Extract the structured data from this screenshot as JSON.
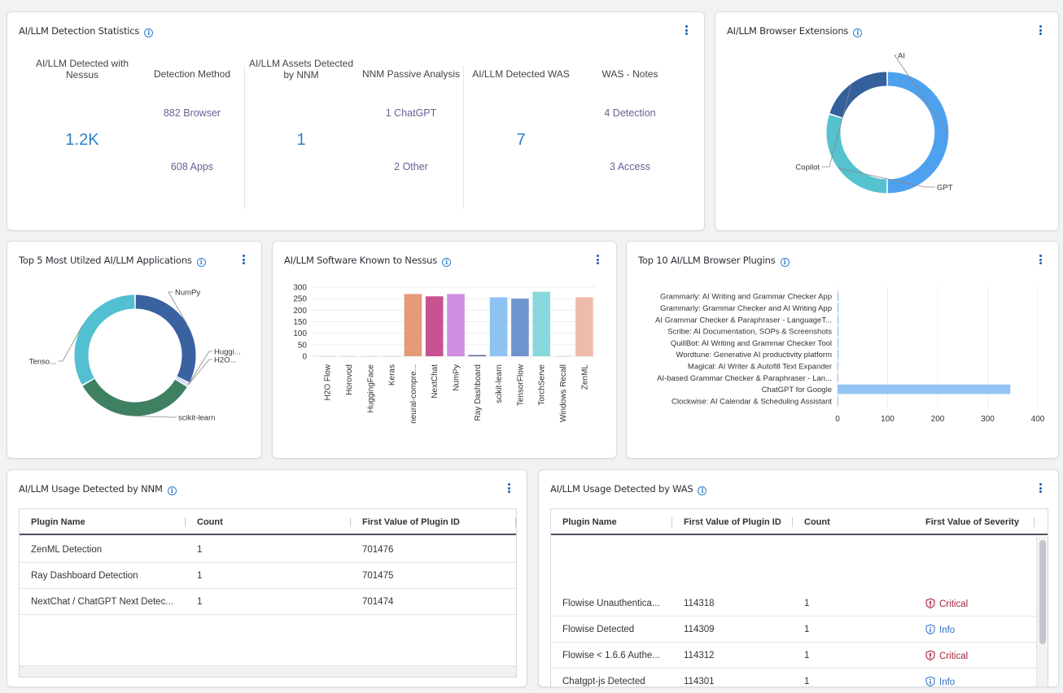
{
  "stats_card": {
    "title": "AI/LLM Detection Statistics",
    "nessus": {
      "label": "AI/LLM Detected with Nessus",
      "value": "1.2K"
    },
    "method": {
      "label": "Detection Method",
      "items": [
        "882 Browser",
        "608 Apps"
      ]
    },
    "nnm": {
      "label": "AI/LLM Assets Detected by NNM",
      "value": "1"
    },
    "passive": {
      "label": "NNM Passive Analysis",
      "items": [
        "1 ChatGPT",
        "2 Other"
      ]
    },
    "was": {
      "label": "AI/LLM Detected WAS",
      "value": "7"
    },
    "was_notes": {
      "label": "WAS - Notes",
      "items": [
        "4 Detection",
        "3 Access"
      ]
    }
  },
  "browser_ext_card": {
    "title": "AI/LLM Browser Extensions",
    "chart_data": {
      "type": "pie",
      "donut": true,
      "labels": [
        "AI",
        "GPT",
        "Copilot"
      ],
      "values": [
        50,
        30,
        20
      ],
      "colors": [
        "#4ea1ee",
        "#56c1cf",
        "#34609b"
      ]
    }
  },
  "top5_card": {
    "title": "Top 5 Most Utilzed AI/LLM Applications",
    "chart_data": {
      "type": "pie",
      "donut": true,
      "labels": [
        "NumPy",
        "Huggi...",
        "H2O...",
        "scikit-learn",
        "Tenso..."
      ],
      "values": [
        32.5,
        0.5,
        0.5,
        33.3,
        33.2
      ],
      "colors": [
        "#3a62a0",
        "#4e8fd8",
        "#8c7ee0",
        "#3f8063",
        "#52c0d0"
      ]
    }
  },
  "software_card": {
    "title": "AI/LLM Software Known to Nessus",
    "chart_data": {
      "type": "bar",
      "categories": [
        "H2O Flow",
        "Horovod",
        "HuggingFace",
        "Keras",
        "neural-compre...",
        "NextChat",
        "NumPy",
        "Ray Dashboard",
        "scikit-learn",
        "TensorFlow",
        "TorchServe",
        "Windows Recall",
        "ZenML"
      ],
      "values": [
        1,
        1,
        1,
        1,
        270,
        260,
        270,
        5,
        256,
        250,
        280,
        1,
        256
      ],
      "colors": [
        "#cccccc",
        "#cccccc",
        "#cccccc",
        "#cccccc",
        "#e49a78",
        "#c8528f",
        "#d18de0",
        "#5b5a8a",
        "#8fc3f3",
        "#6f93cf",
        "#89d7dd",
        "#cccccc",
        "#efbcab"
      ],
      "yticks": [
        "0",
        "50",
        "100",
        "150",
        "200",
        "250",
        "300"
      ],
      "ylim": [
        0,
        300
      ]
    }
  },
  "plugins_card": {
    "title": "Top 10 AI/LLM Browser Plugins",
    "chart_data": {
      "type": "bar",
      "orientation": "horizontal",
      "categories": [
        "Grammarly: AI Writing and Grammar Checker App",
        "Grammarly: Grammar Checker and AI Writing App",
        "AI Grammar Checker & Paraphraser - LanguageT...",
        "Scribe: AI Documentation, SOPs & Screenshots",
        "QuillBot: AI Writing and Grammar Checker Tool",
        "Wordtune: Generative AI productivity platform",
        "Magical: AI Writer & Autofill Text Expander",
        "AI-based Grammar Checker & Paraphraser - Lan...",
        "ChatGPT for Google",
        "Clockwise: AI Calendar & Scheduling Assistant"
      ],
      "values": [
        2,
        2,
        2,
        2,
        2,
        2,
        1,
        1,
        345,
        1
      ],
      "xticks": [
        "0",
        "100",
        "200",
        "300",
        "400"
      ],
      "xlim": [
        0,
        400
      ],
      "color": "#92c4f4"
    }
  },
  "nnm_card": {
    "title": "AI/LLM Usage Detected by NNM",
    "headers": [
      "Plugin Name",
      "Count",
      "First Value of Plugin ID"
    ],
    "rows": [
      [
        "ZenML Detection",
        "1",
        "701476"
      ],
      [
        "Ray Dashboard Detection",
        "1",
        "701475"
      ],
      [
        "NextChat / ChatGPT Next Detec...",
        "1",
        "701474"
      ]
    ]
  },
  "was_card": {
    "title": "AI/LLM Usage Detected by WAS",
    "headers": [
      "Plugin Name",
      "First Value of Plugin ID",
      "Count",
      "First Value of Severity"
    ],
    "rows": [
      [
        "Flowise Unauthentica...",
        "114318",
        "1",
        "Critical"
      ],
      [
        "Flowise Detected",
        "114309",
        "1",
        "Info"
      ],
      [
        "Flowise < 1.6.6 Authe...",
        "114312",
        "1",
        "Critical"
      ],
      [
        "Chatgpt-js Detected",
        "114301",
        "1",
        "Info"
      ]
    ],
    "severity_colors": {
      "Critical": "#a3243b",
      "Info": "#2f6fc0"
    }
  }
}
